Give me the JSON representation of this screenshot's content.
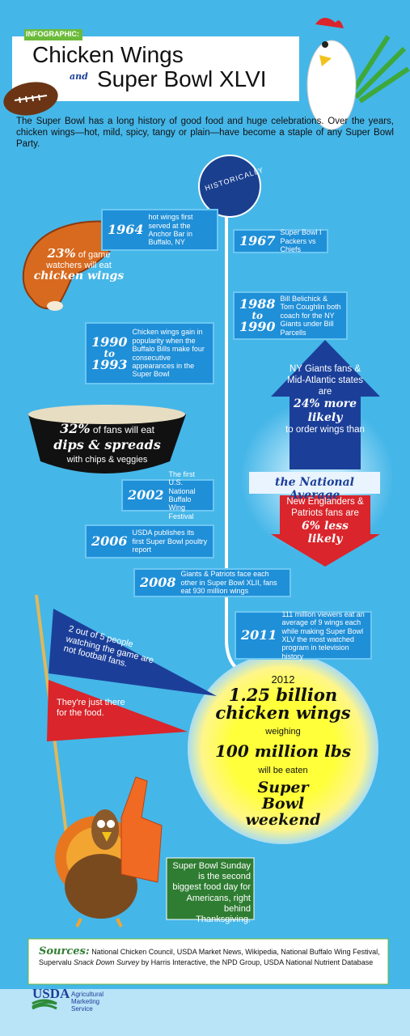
{
  "header": {
    "badge": "INFOGRAPHIC:",
    "title_line1": "Chicken Wings",
    "connector": "and",
    "title_line2": "Super Bowl XLVI"
  },
  "intro": "The Super Bowl has a long history of good food and huge celebrations.  Over the years, chicken wings—hot, mild, spicy, tangy or plain—have become a staple of any Super Bowl Party.",
  "timeline": {
    "label": "HISTORICALLY",
    "events": [
      {
        "year": [
          "1964"
        ],
        "text": "hot wings first served at the Anchor Bar in Buffalo, NY"
      },
      {
        "year": [
          "1967"
        ],
        "text": "Super Bowl I Packers vs Chiefs"
      },
      {
        "year": [
          "1988",
          "to",
          "1990"
        ],
        "text": "Bill Belichick & Tom Coughlin both coach for the NY Giants under Bill Parcells"
      },
      {
        "year": [
          "1990",
          "to",
          "1993"
        ],
        "text": "Chicken wings gain in popularity when the Buffalo Bills make four consecutive appearances in the Super Bowl"
      },
      {
        "year": [
          "2002"
        ],
        "text": "The first U.S. National Buffalo Wing Festival"
      },
      {
        "year": [
          "2006"
        ],
        "text": "USDA publishes its first Super Bowl poultry report"
      },
      {
        "year": [
          "2008"
        ],
        "text": "Giants & Patriots face each other in Super Bowl XLII, fans eat 930 million wings"
      },
      {
        "year": [
          "2011"
        ],
        "text": "111 million viewers eat an average of 9 wings each while making Super Bowl XLV the most watched program in television history"
      }
    ]
  },
  "stats": {
    "wings": {
      "percent": "23%",
      "text": "of game watchers will eat",
      "highlight": "chicken wings"
    },
    "dips": {
      "percent": "32%",
      "text": "of fans will eat",
      "highlight": "dips & spreads",
      "note": "with chips & veggies"
    }
  },
  "comparison": {
    "up": {
      "lead": "NY Giants fans & Mid-Atlantic states are",
      "highlight": "24% more likely",
      "tail": "to order wings than"
    },
    "baseline": "the National Average",
    "down": {
      "lead": "New Englanders & Patriots fans are",
      "highlight": "6% less likely"
    }
  },
  "pennants": {
    "blue": "2 out of 5 people watching the game are not football fans.",
    "red": "They're just there for the food."
  },
  "forecast": {
    "year": "2012",
    "amount": "1.25 billion chicken wings",
    "weighing": "weighing",
    "weight": "100 million lbs",
    "eaten": "will be eaten",
    "occasion": "Super Bowl weekend"
  },
  "callout": "Super Bowl Sunday is the second biggest food day for Americans, right behind Thanksgiving.",
  "sources": {
    "label": "Sources:",
    "text_before": "National Chicken Council, USDA Market News, Wikipedia, National Buffalo Wing Festival, Supervalu ",
    "survey": "Snack Down Survey",
    "text_after": " by Harris Interactive, the NPD Group, USDA National Nutrient Database"
  },
  "footer": {
    "logo": "USDA",
    "agency": "Agricultural Marketing Service"
  }
}
